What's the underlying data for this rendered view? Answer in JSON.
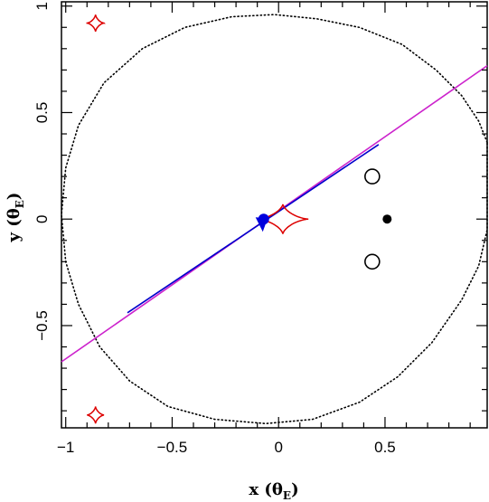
{
  "chart_data": {
    "type": "scatter",
    "title": "",
    "xlabel": {
      "main": "x (θ",
      "sub": "E",
      "close": ")"
    },
    "ylabel": {
      "main": "y (θ",
      "sub": "E",
      "close": ")"
    },
    "xlim": [
      -1.02,
      0.98
    ],
    "ylim": [
      -0.98,
      1.02
    ],
    "x_ticks": [
      {
        "value": -1,
        "label": "−1"
      },
      {
        "value": -0.5,
        "label": "−0.5"
      },
      {
        "value": 0,
        "label": "0"
      },
      {
        "value": 0.5,
        "label": "0.5"
      }
    ],
    "y_ticks": [
      {
        "value": -0.5,
        "label": "−0.5"
      },
      {
        "value": 0,
        "label": "0"
      },
      {
        "value": 0.5,
        "label": "0.5"
      },
      {
        "value": 1,
        "label": "1"
      }
    ],
    "grid": false,
    "critical_curve": {
      "style": "dotted",
      "color": "#000000",
      "points": [
        [
          0.98,
          0.36
        ],
        [
          0.94,
          0.46
        ],
        [
          0.86,
          0.58
        ],
        [
          0.74,
          0.7
        ],
        [
          0.58,
          0.82
        ],
        [
          0.38,
          0.9
        ],
        [
          0.18,
          0.94
        ],
        [
          -0.02,
          0.96
        ],
        [
          -0.22,
          0.95
        ],
        [
          -0.44,
          0.9
        ],
        [
          -0.64,
          0.8
        ],
        [
          -0.82,
          0.64
        ],
        [
          -0.94,
          0.44
        ],
        [
          -1.0,
          0.24
        ],
        [
          -1.02,
          0.02
        ],
        [
          -1.0,
          -0.2
        ],
        [
          -0.94,
          -0.4
        ],
        [
          -0.84,
          -0.6
        ],
        [
          -0.7,
          -0.76
        ],
        [
          -0.52,
          -0.88
        ],
        [
          -0.3,
          -0.94
        ],
        [
          -0.06,
          -0.96
        ],
        [
          0.16,
          -0.94
        ],
        [
          0.38,
          -0.86
        ],
        [
          0.56,
          -0.74
        ],
        [
          0.72,
          -0.58
        ],
        [
          0.86,
          -0.38
        ],
        [
          0.94,
          -0.22
        ],
        [
          0.98,
          -0.05
        ]
      ]
    },
    "trajectory_magenta": {
      "color": "#cc22cc",
      "x": [
        -1.02,
        0.98
      ],
      "y": [
        -0.67,
        0.72
      ]
    },
    "trajectory_blue": {
      "color": "#0000cc",
      "x": [
        -0.71,
        0.47
      ],
      "y": [
        -0.44,
        0.35
      ]
    },
    "caustics": [
      {
        "color": "#dd0000",
        "cx": 0.02,
        "cy": 0.0,
        "rx": 0.12,
        "ry": 0.07
      },
      {
        "color": "#dd0000",
        "cx": -0.86,
        "cy": 0.92,
        "rx": 0.04,
        "ry": 0.04
      },
      {
        "color": "#dd0000",
        "cx": -0.86,
        "cy": -0.92,
        "rx": 0.04,
        "ry": 0.04
      }
    ],
    "source_star": {
      "color": "#0000dd",
      "x": -0.07,
      "y": 0.0,
      "size": 0.03
    },
    "lens_filled": {
      "x": 0.51,
      "y": 0.0
    },
    "lens_open": [
      {
        "x": 0.44,
        "y": 0.2
      },
      {
        "x": 0.44,
        "y": -0.2
      }
    ]
  }
}
